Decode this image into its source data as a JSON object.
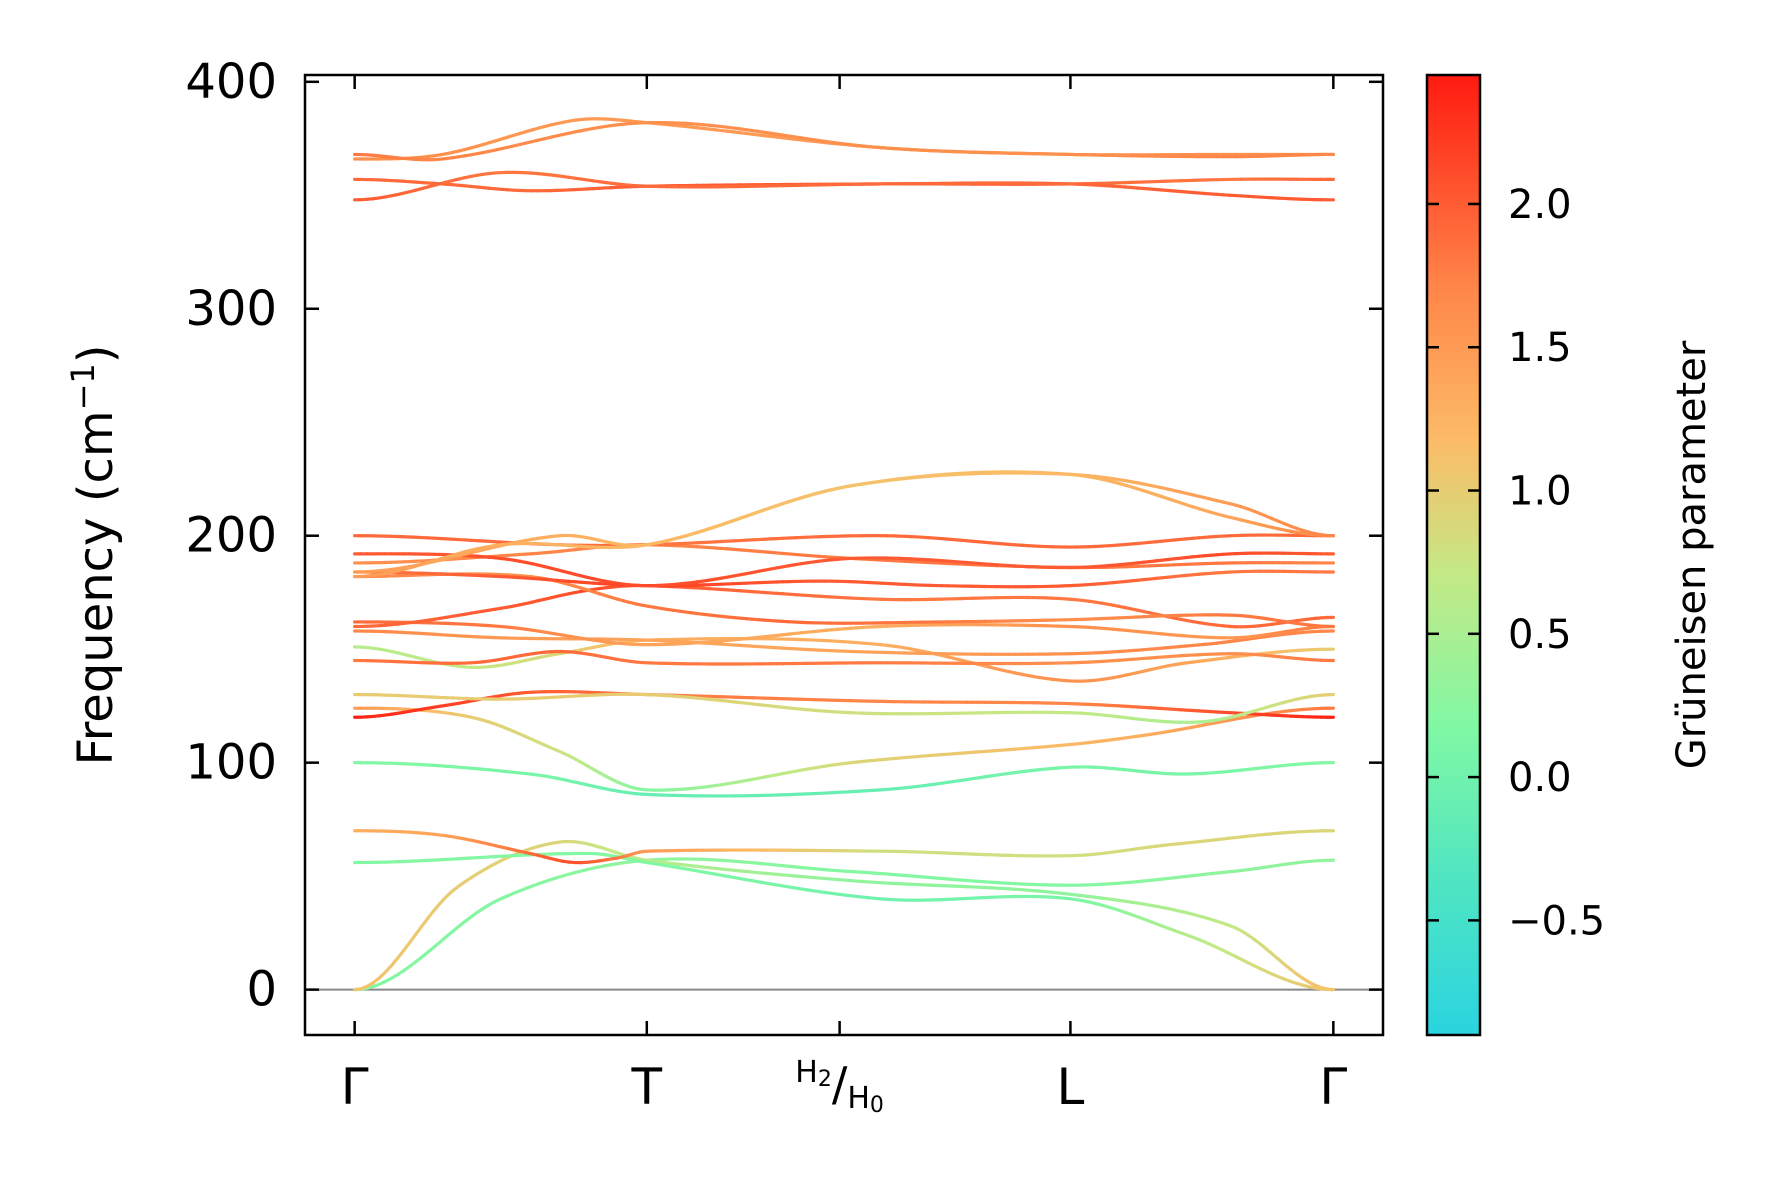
{
  "chart_data": {
    "type": "line",
    "ylabel": "Frequency (cm",
    "ylabel_sup": "−1",
    "ylabel_end": ")",
    "ylim": [
      -20,
      403
    ],
    "y_ticks": [
      0,
      100,
      200,
      300,
      400
    ],
    "x_ticks": [
      {
        "label": "Γ",
        "k": 0
      },
      {
        "label": "T",
        "k": 1
      },
      {
        "label_num": "H",
        "label_num_sub": "2",
        "label_sep": "/",
        "label_den": "H",
        "label_den_sub": "0",
        "k": 1.66
      },
      {
        "label": "L",
        "k": 2.45
      },
      {
        "label": "Γ",
        "k": 3.35
      }
    ],
    "x_range": [
      -0.17,
      3.52
    ],
    "colorbar": {
      "label": "Grüneisen parameter",
      "range": [
        -0.9,
        2.45
      ],
      "ticks": [
        -0.5,
        0.0,
        0.5,
        1.0,
        1.5,
        2.0
      ],
      "tick_labels": [
        "−0.5",
        "0.0",
        "0.5",
        "1.0",
        "1.5",
        "2.0"
      ],
      "colormap": "rainbow"
    },
    "baseline_color": "#888888",
    "series": [
      {
        "k": [
          0,
          0.5,
          1.0,
          1.7,
          2.45,
          3.0,
          3.35
        ],
        "freq": [
          0,
          40,
          57,
          52,
          46,
          52,
          57
        ],
        "gamma": [
          0.2,
          0.2,
          0.3,
          0.2,
          0.2,
          0.3,
          0.3
        ]
      },
      {
        "k": [
          0,
          0.35,
          0.7,
          1.0,
          1.7,
          2.45,
          3.0,
          3.35
        ],
        "freq": [
          0,
          45,
          65,
          57,
          48,
          42,
          28,
          0
        ],
        "gamma": [
          1.1,
          1.0,
          0.9,
          0.6,
          0.3,
          0.3,
          0.7,
          1.2
        ]
      },
      {
        "k": [
          0,
          0.8,
          1.0,
          1.8,
          2.45,
          2.85,
          3.35
        ],
        "freq": [
          56,
          60,
          56,
          40,
          40,
          24,
          0
        ],
        "gamma": [
          0.2,
          0.2,
          0.2,
          0.0,
          0.1,
          0.6,
          1.1
        ]
      },
      {
        "k": [
          0,
          0.3,
          0.6,
          0.75,
          0.9,
          1.0,
          1.8,
          2.45,
          2.8,
          3.35
        ],
        "freq": [
          70,
          68,
          60,
          56,
          58,
          61,
          61,
          59,
          64,
          70
        ],
        "gamma": [
          1.3,
          1.4,
          1.9,
          2.1,
          1.8,
          1.5,
          0.8,
          0.8,
          0.9,
          0.9
        ]
      },
      {
        "k": [
          0,
          0.6,
          1.0,
          1.8,
          2.45,
          2.85,
          3.35
        ],
        "freq": [
          100,
          95,
          86,
          88,
          98,
          95,
          100
        ],
        "gamma": [
          0.2,
          0.1,
          -0.1,
          -0.1,
          0.1,
          0.1,
          0.2
        ]
      },
      {
        "k": [
          0,
          0.4,
          0.7,
          1.0,
          1.7,
          2.45,
          2.7,
          3.35
        ],
        "freq": [
          124,
          120,
          105,
          88,
          100,
          108,
          112,
          124
        ],
        "gamma": [
          1.5,
          1.0,
          0.8,
          0.2,
          0.9,
          1.2,
          1.3,
          1.8
        ]
      },
      {
        "k": [
          0,
          0.3,
          0.6,
          1.0,
          1.8,
          2.45,
          3.0,
          3.35
        ],
        "freq": [
          120,
          125,
          131,
          130,
          127,
          126,
          122,
          120
        ],
        "gamma": [
          2.4,
          2.2,
          2.0,
          1.8,
          1.7,
          1.7,
          2.1,
          2.4
        ]
      },
      {
        "k": [
          0,
          0.5,
          1.0,
          1.7,
          2.45,
          2.9,
          3.35
        ],
        "freq": [
          130,
          128,
          130,
          122,
          122,
          118,
          130
        ],
        "gamma": [
          1.0,
          1.0,
          1.0,
          0.8,
          0.7,
          0.5,
          1.0
        ]
      },
      {
        "k": [
          0,
          0.4,
          0.7,
          1.0,
          1.8,
          2.45,
          2.85,
          3.35
        ],
        "freq": [
          151,
          142,
          148,
          154,
          152,
          136,
          144,
          150
        ],
        "gamma": [
          0.6,
          0.7,
          0.9,
          1.3,
          1.3,
          1.6,
          1.4,
          1.0
        ]
      },
      {
        "k": [
          0,
          0.4,
          0.7,
          1.0,
          1.8,
          2.45,
          3.0,
          3.35
        ],
        "freq": [
          145,
          144,
          149,
          144,
          144,
          144,
          148,
          145
        ],
        "gamma": [
          1.8,
          1.9,
          1.9,
          1.8,
          1.8,
          1.6,
          1.6,
          1.8
        ]
      },
      {
        "k": [
          0,
          0.5,
          1.0,
          1.7,
          2.45,
          2.9,
          3.35
        ],
        "freq": [
          158,
          155,
          154,
          149,
          148,
          152,
          158
        ],
        "gamma": [
          1.7,
          1.5,
          1.4,
          1.4,
          1.6,
          1.7,
          1.7
        ]
      },
      {
        "k": [
          0,
          0.5,
          1.0,
          1.8,
          2.45,
          3.0,
          3.35
        ],
        "freq": [
          162,
          160,
          152,
          160,
          160,
          155,
          160
        ],
        "gamma": [
          1.9,
          1.8,
          1.4,
          1.3,
          1.6,
          1.5,
          1.8
        ]
      },
      {
        "k": [
          0,
          0.5,
          0.8,
          1.0,
          1.8,
          2.45,
          3.0,
          3.35
        ],
        "freq": [
          160,
          168,
          176,
          178,
          172,
          172,
          160,
          164
        ],
        "gamma": [
          1.9,
          2.0,
          2.1,
          2.0,
          1.8,
          1.8,
          1.9,
          1.9
        ]
      },
      {
        "k": [
          0,
          0.6,
          1.0,
          1.5,
          2.0,
          2.45,
          3.0,
          3.35
        ],
        "freq": [
          182,
          182,
          169,
          162,
          162,
          163,
          165,
          160
        ],
        "gamma": [
          1.7,
          1.6,
          1.8,
          1.9,
          1.8,
          1.6,
          1.8,
          1.8
        ]
      },
      {
        "k": [
          0,
          0.5,
          1.0,
          1.6,
          2.0,
          2.45,
          3.0,
          3.35
        ],
        "freq": [
          184,
          182,
          178,
          180,
          178,
          178,
          184,
          184
        ],
        "gamma": [
          1.8,
          2.0,
          2.2,
          2.0,
          2.0,
          2.0,
          1.8,
          1.8
        ]
      },
      {
        "k": [
          0,
          0.6,
          1.0,
          1.7,
          2.45,
          3.0,
          3.35
        ],
        "freq": [
          188,
          192,
          196,
          190,
          186,
          188,
          188
        ],
        "gamma": [
          1.6,
          1.7,
          1.7,
          1.8,
          1.8,
          1.8,
          1.7
        ]
      },
      {
        "k": [
          0,
          0.5,
          1.0,
          1.7,
          2.45,
          3.0,
          3.35
        ],
        "freq": [
          192,
          190,
          178,
          190,
          186,
          192,
          192
        ],
        "gamma": [
          2.0,
          2.1,
          2.1,
          2.0,
          2.0,
          2.1,
          2.0
        ]
      },
      {
        "k": [
          0,
          0.7,
          1.0,
          1.8,
          2.45,
          3.0,
          3.35
        ],
        "freq": [
          200,
          196,
          196,
          200,
          195,
          200,
          200
        ],
        "gamma": [
          1.9,
          1.9,
          1.8,
          1.9,
          1.9,
          1.9,
          1.9
        ]
      },
      {
        "k": [
          0,
          0.7,
          1.0,
          1.7,
          2.45,
          3.0,
          3.35
        ],
        "freq": [
          184,
          200,
          196,
          222,
          227,
          208,
          200
        ],
        "gamma": [
          1.5,
          1.3,
          1.2,
          1.1,
          1.2,
          1.4,
          1.7
        ]
      },
      {
        "k": [
          0,
          0.5,
          1.0,
          1.7,
          2.45,
          3.0,
          3.35
        ],
        "freq": [
          182,
          196,
          196,
          222,
          227,
          214,
          200
        ],
        "gamma": [
          1.5,
          1.3,
          1.2,
          1.1,
          1.2,
          1.5,
          1.7
        ]
      },
      {
        "k": [
          0,
          0.3,
          0.75,
          1.0,
          1.8,
          2.45,
          3.0,
          3.35
        ],
        "freq": [
          366,
          368,
          383,
          382,
          371,
          368,
          368,
          368
        ],
        "gamma": [
          1.6,
          1.6,
          1.5,
          1.5,
          1.5,
          1.6,
          1.6,
          1.6
        ]
      },
      {
        "k": [
          0,
          0.3,
          1.0,
          1.8,
          2.45,
          3.0,
          3.35
        ],
        "freq": [
          368,
          366,
          382,
          371,
          368,
          367,
          368
        ],
        "gamma": [
          1.8,
          1.7,
          1.6,
          1.6,
          1.6,
          1.7,
          1.7
        ]
      },
      {
        "k": [
          0,
          0.3,
          0.6,
          1.0,
          1.8,
          2.45,
          3.0,
          3.35
        ],
        "freq": [
          357,
          355,
          352,
          354,
          355,
          355,
          357,
          357
        ],
        "gamma": [
          1.9,
          1.9,
          1.9,
          2.0,
          2.0,
          1.9,
          1.8,
          1.9
        ]
      },
      {
        "k": [
          0,
          0.5,
          1.0,
          1.8,
          2.45,
          3.0,
          3.35
        ],
        "freq": [
          348,
          360,
          354,
          355,
          355,
          350,
          348
        ],
        "gamma": [
          2.0,
          1.8,
          1.9,
          1.9,
          1.9,
          2.0,
          2.0
        ]
      }
    ]
  }
}
